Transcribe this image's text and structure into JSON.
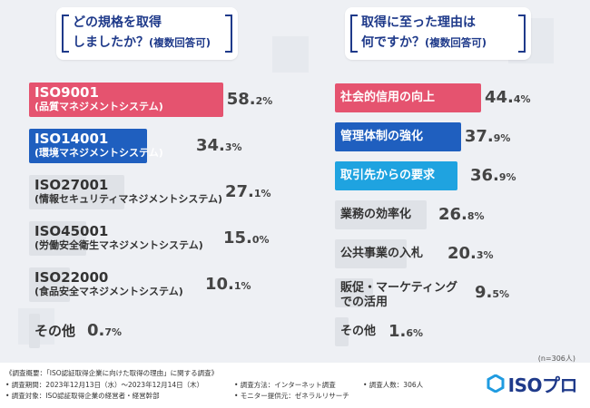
{
  "chart_data": [
    {
      "type": "bar",
      "title_line1": "どの規格を取得",
      "title_line2": "しましたか？",
      "title_note": "(複数回答可)",
      "categories": [
        {
          "main": "ISO9001",
          "sub": "(品質マネジメントシステム)"
        },
        {
          "main": "ISO14001",
          "sub": "(環境マネジメントシステム)"
        },
        {
          "main": "ISO27001",
          "sub": "(情報セキュリティマネジメントシステム)"
        },
        {
          "main": "ISO45001",
          "sub": "(労働安全衛生マネジメントシステム)"
        },
        {
          "main": "ISO22000",
          "sub": "(食品安全マネジメントシステム)"
        },
        {
          "main": "その他",
          "sub": ""
        }
      ],
      "values": [
        58.2,
        34.3,
        27.1,
        15.0,
        10.1,
        0.7
      ],
      "value_labels": [
        [
          "58.",
          "2%"
        ],
        [
          "34.",
          "3%"
        ],
        [
          "27.",
          "1%"
        ],
        [
          "15.",
          "0%"
        ],
        [
          "10.",
          "1%"
        ],
        [
          "0.",
          "7%"
        ]
      ],
      "colors": [
        "#e5536f",
        "#1f5fbf",
        "#dfe2e7",
        "#dfe2e7",
        "#dfe2e7",
        "#dfe2e7"
      ],
      "xlim": [
        0,
        100
      ]
    },
    {
      "type": "bar",
      "title_line1": "取得に至った理由は",
      "title_line2": "何ですか？",
      "title_note": "(複数回答可)",
      "categories": [
        {
          "main": "社会的信用の向上",
          "sub": ""
        },
        {
          "main": "管理体制の強化",
          "sub": ""
        },
        {
          "main": "取引先からの要求",
          "sub": ""
        },
        {
          "main": "業務の効率化",
          "sub": ""
        },
        {
          "main": "公共事業の入札",
          "sub": ""
        },
        {
          "main": "販促・マーケティング",
          "sub": "での活用"
        },
        {
          "main": "その他",
          "sub": ""
        }
      ],
      "values": [
        44.4,
        37.9,
        36.9,
        26.8,
        20.3,
        9.5,
        1.6
      ],
      "value_labels": [
        [
          "44.",
          "4%"
        ],
        [
          "37.",
          "9%"
        ],
        [
          "36.",
          "9%"
        ],
        [
          "26.",
          "8%"
        ],
        [
          "20.",
          "3%"
        ],
        [
          "9.",
          "5%"
        ],
        [
          "1.",
          "6%"
        ]
      ],
      "colors": [
        "#e5536f",
        "#1f5fbf",
        "#1fa3e0",
        "#dfe2e7",
        "#dfe2e7",
        "#dfe2e7",
        "#dfe2e7"
      ],
      "xlim": [
        0,
        100
      ]
    }
  ],
  "sample_size": "(n=306人)",
  "footer": {
    "line1": "《調査概要：「ISO認証取得企業に向けた取得の理由」に関する調査》",
    "period": "• 調査期間：2023年12月13日（水）～2023年12月14日（木）",
    "method": "• 調査方法：インターネット調査",
    "people": "• 調査人数：306人",
    "target": "• 調査対象：ISO認証取得企業の経営者・経営幹部",
    "provider": "• モニター提供元：ゼネラルリサーチ"
  },
  "logo": {
    "text": "ISOプロ"
  }
}
